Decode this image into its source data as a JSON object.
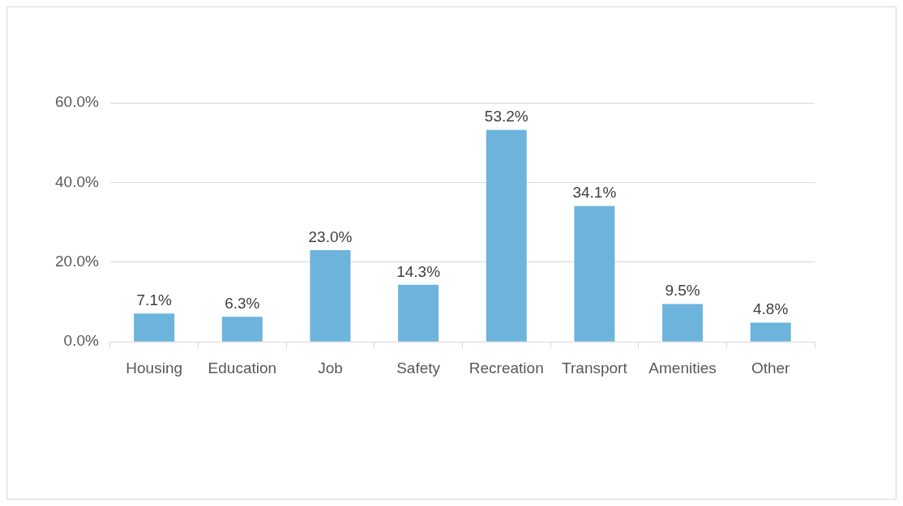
{
  "chart_data": {
    "type": "bar",
    "categories": [
      "Housing",
      "Education",
      "Job",
      "Safety",
      "Recreation",
      "Transport",
      "Amenities",
      "Other"
    ],
    "values": [
      7.1,
      6.3,
      23.0,
      14.3,
      53.2,
      34.1,
      9.5,
      4.8
    ],
    "value_labels": [
      "7.1%",
      "6.3%",
      "23.0%",
      "14.3%",
      "53.2%",
      "34.1%",
      "9.5%",
      "4.8%"
    ],
    "color": "#6cb4dc",
    "ylim": [
      0,
      60
    ],
    "yticks": [
      {
        "value": 0,
        "label": "0.0%"
      },
      {
        "value": 20,
        "label": "20.0%"
      },
      {
        "value": 40,
        "label": "40.0%"
      },
      {
        "value": 60,
        "label": "60.0%"
      }
    ],
    "grid": "y"
  }
}
